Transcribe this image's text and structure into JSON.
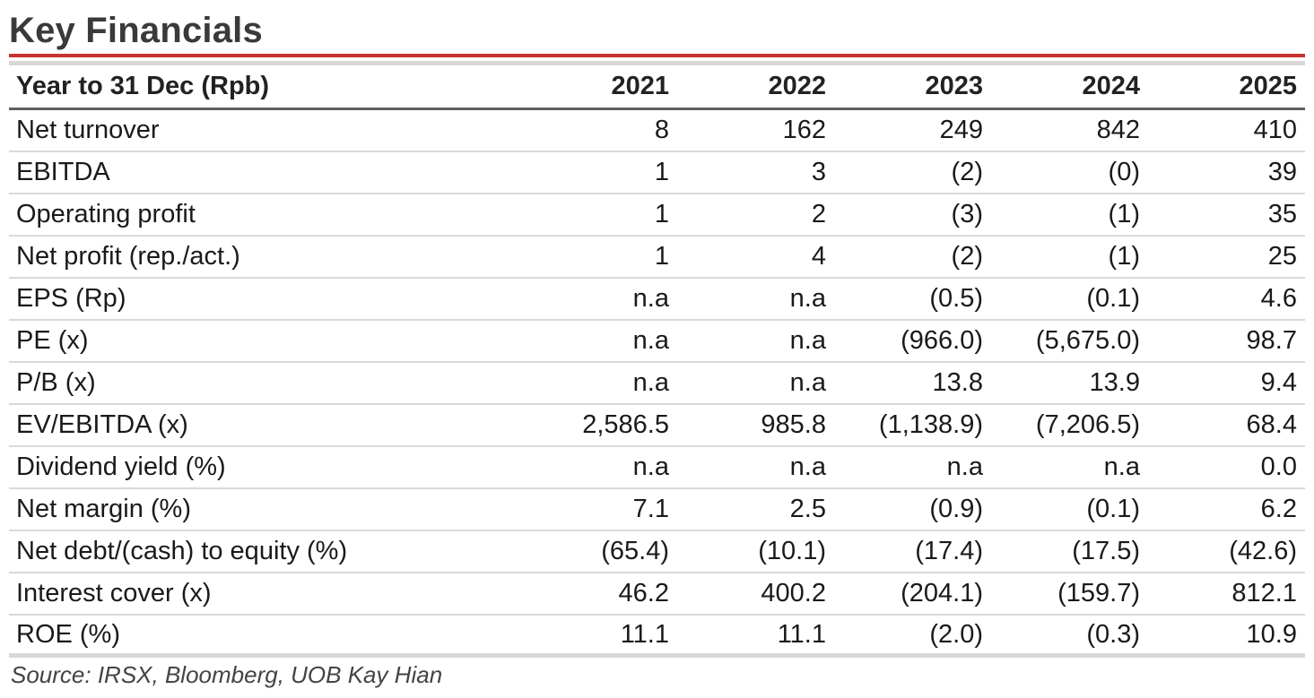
{
  "title": "Key Financials",
  "table": {
    "header": {
      "label": "Year to 31 Dec (Rpb)",
      "years": [
        "2021",
        "2022",
        "2023",
        "2024",
        "2025"
      ]
    },
    "rows": [
      {
        "label": "Net turnover",
        "values": [
          "8",
          "162",
          "249",
          "842",
          "410"
        ]
      },
      {
        "label": "EBITDA",
        "values": [
          "1",
          "3",
          "(2)",
          "(0)",
          "39"
        ]
      },
      {
        "label": "Operating profit",
        "values": [
          "1",
          "2",
          "(3)",
          "(1)",
          "35"
        ]
      },
      {
        "label": "Net profit (rep./act.)",
        "values": [
          "1",
          "4",
          "(2)",
          "(1)",
          "25"
        ]
      },
      {
        "label": "EPS (Rp)",
        "values": [
          "n.a",
          "n.a",
          "(0.5)",
          "(0.1)",
          "4.6"
        ]
      },
      {
        "label": "PE (x)",
        "values": [
          "n.a",
          "n.a",
          "(966.0)",
          "(5,675.0)",
          "98.7"
        ]
      },
      {
        "label": "P/B (x)",
        "values": [
          "n.a",
          "n.a",
          "13.8",
          "13.9",
          "9.4"
        ]
      },
      {
        "label": "EV/EBITDA (x)",
        "values": [
          "2,586.5",
          "985.8",
          "(1,138.9)",
          "(7,206.5)",
          "68.4"
        ]
      },
      {
        "label": "Dividend yield (%)",
        "values": [
          "n.a",
          "n.a",
          "n.a",
          "n.a",
          "0.0"
        ]
      },
      {
        "label": "Net margin (%)",
        "values": [
          "7.1",
          "2.5",
          "(0.9)",
          "(0.1)",
          "6.2"
        ]
      },
      {
        "label": "Net debt/(cash) to equity (%)",
        "values": [
          "(65.4)",
          "(10.1)",
          "(17.4)",
          "(17.5)",
          "(42.6)"
        ]
      },
      {
        "label": "Interest cover (x)",
        "values": [
          "46.2",
          "400.2",
          "(204.1)",
          "(159.7)",
          "812.1"
        ]
      },
      {
        "label": "ROE (%)",
        "values": [
          "11.1",
          "11.1",
          "(2.0)",
          "(0.3)",
          "10.9"
        ]
      }
    ]
  },
  "source": "Source: IRSX, Bloomberg, UOB Kay Hian",
  "colors": {
    "accent_rule": "#c8322e",
    "grey_rule": "#d8d8d8",
    "header_rule": "#5f5f5f"
  }
}
